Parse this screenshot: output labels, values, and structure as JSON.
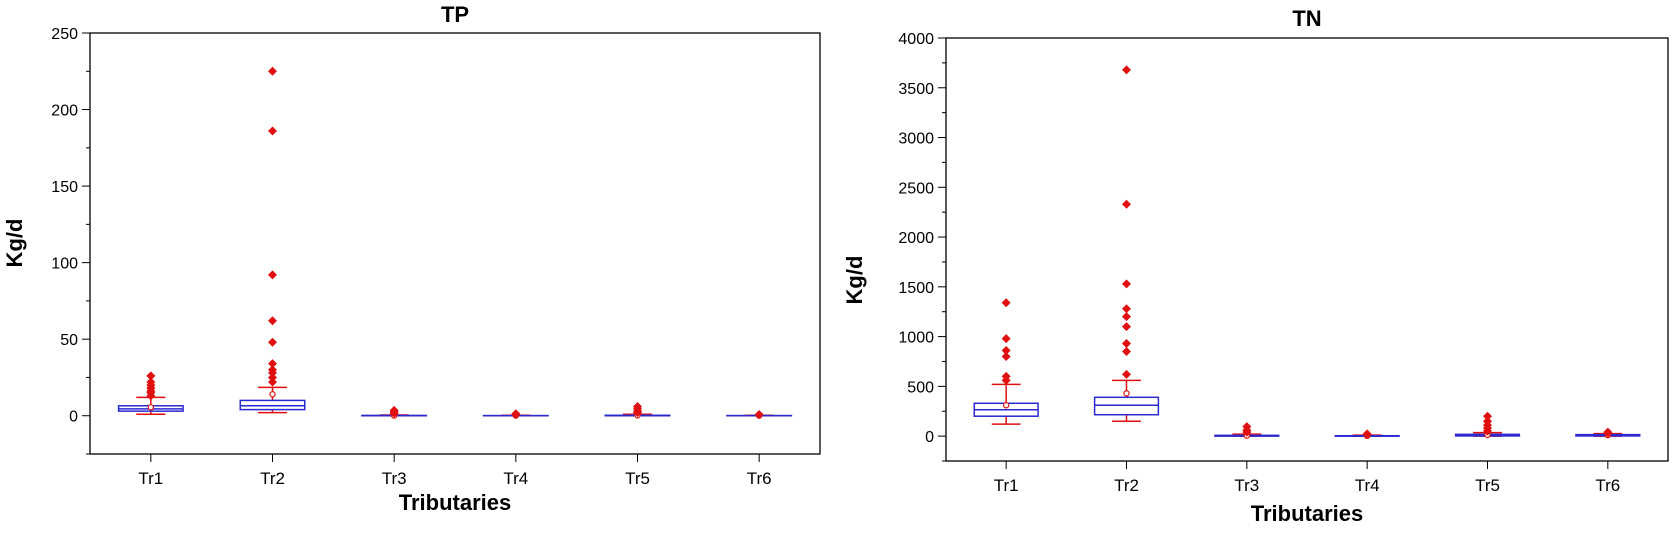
{
  "chart_data": [
    {
      "type": "box",
      "title": "TP",
      "xlabel": "Tributaries",
      "ylabel": "Kg/d",
      "ylim": [
        -25,
        250
      ],
      "yticks": [
        0,
        50,
        100,
        150,
        200,
        250
      ],
      "categories": [
        "Tr1",
        "Tr2",
        "Tr3",
        "Tr4",
        "Tr5",
        "Tr6"
      ],
      "colors": {
        "box": "#2a2ad0",
        "whisker": "#e01010",
        "outlier": "#e01010"
      },
      "boxes": [
        {
          "q1": 3,
          "median": 4.5,
          "q3": 6.5,
          "mean": 5.5,
          "whisker_low": 1,
          "whisker_high": 12,
          "outliers": [
            13,
            15,
            16,
            18,
            20,
            22,
            26
          ]
        },
        {
          "q1": 4,
          "median": 6.5,
          "q3": 10,
          "mean": 14,
          "whisker_low": 2,
          "whisker_high": 18.5,
          "outliers": [
            22,
            25,
            28,
            30,
            34,
            48,
            62,
            92,
            186,
            225
          ]
        },
        {
          "q1": 0,
          "median": 0,
          "q3": 0.2,
          "mean": 0.1,
          "whisker_low": 0,
          "whisker_high": 0.5,
          "outliers": [
            1.5,
            2.5,
            3.5
          ]
        },
        {
          "q1": 0,
          "median": 0,
          "q3": 0.1,
          "mean": 0.1,
          "whisker_low": 0,
          "whisker_high": 0.3,
          "outliers": [
            0.8,
            1.3
          ]
        },
        {
          "q1": 0,
          "median": 0,
          "q3": 0.3,
          "mean": 0.2,
          "whisker_low": 0,
          "whisker_high": 1,
          "outliers": [
            2,
            3,
            4.5,
            6
          ]
        },
        {
          "q1": 0,
          "median": 0,
          "q3": 0.1,
          "mean": 0.1,
          "whisker_low": 0,
          "whisker_high": 0.3,
          "outliers": [
            0.8
          ]
        }
      ]
    },
    {
      "type": "box",
      "title": "TN",
      "xlabel": "Tributaries",
      "ylabel": "Kg/d",
      "ylim": [
        -250,
        4000
      ],
      "yticks": [
        0,
        500,
        1000,
        1500,
        2000,
        2500,
        3000,
        3500,
        4000
      ],
      "categories": [
        "Tr1",
        "Tr2",
        "Tr3",
        "Tr4",
        "Tr5",
        "Tr6"
      ],
      "colors": {
        "box": "#2a2ad0",
        "whisker": "#e01010",
        "outlier": "#e01010"
      },
      "boxes": [
        {
          "q1": 200,
          "median": 265,
          "q3": 330,
          "mean": 310,
          "whisker_low": 120,
          "whisker_high": 520,
          "outliers": [
            560,
            600,
            800,
            860,
            980,
            1340
          ]
        },
        {
          "q1": 215,
          "median": 310,
          "q3": 390,
          "mean": 430,
          "whisker_low": 150,
          "whisker_high": 560,
          "outliers": [
            620,
            850,
            930,
            1100,
            1200,
            1280,
            1530,
            2330,
            3680
          ]
        },
        {
          "q1": 0,
          "median": 2,
          "q3": 8,
          "mean": 5,
          "whisker_low": 0,
          "whisker_high": 20,
          "outliers": [
            40,
            60,
            95
          ]
        },
        {
          "q1": 0,
          "median": 1,
          "q3": 4,
          "mean": 3,
          "whisker_low": 0,
          "whisker_high": 10,
          "outliers": [
            15,
            22
          ]
        },
        {
          "q1": 2,
          "median": 8,
          "q3": 18,
          "mean": 12,
          "whisker_low": 0,
          "whisker_high": 35,
          "outliers": [
            50,
            80,
            110,
            150,
            200
          ]
        },
        {
          "q1": 2,
          "median": 7,
          "q3": 15,
          "mean": 10,
          "whisker_low": 0,
          "whisker_high": 25,
          "outliers": [
            30,
            40
          ]
        }
      ]
    }
  ]
}
